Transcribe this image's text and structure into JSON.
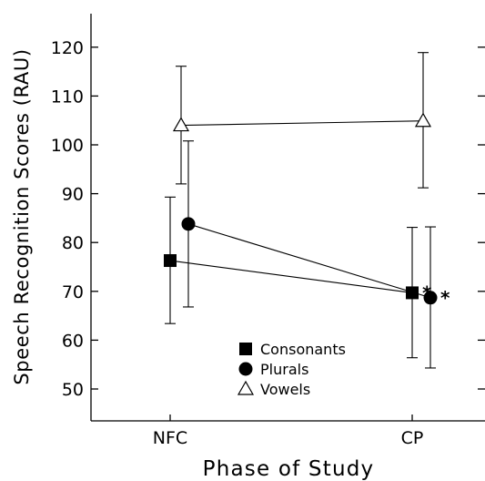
{
  "chart_data": {
    "type": "line",
    "categories": [
      "NFC",
      "CP"
    ],
    "xlabel": "Phase of Study",
    "ylabel": "Speech Recognition Scores (RAU)",
    "ylim": [
      44,
      127
    ],
    "yticks": [
      50,
      60,
      70,
      80,
      90,
      100,
      110,
      120
    ],
    "legend_position": "bottom-center",
    "grid": false,
    "series": [
      {
        "name": "Consonants",
        "marker": "filled-square",
        "values": [
          76.3,
          69.7
        ],
        "error_low": [
          63.4,
          56.4
        ],
        "error_high": [
          89.3,
          83.1
        ],
        "significance": [
          "",
          "*"
        ]
      },
      {
        "name": "Plurals",
        "marker": "filled-circle",
        "values": [
          83.8,
          68.7
        ],
        "error_low": [
          66.8,
          54.3
        ],
        "error_high": [
          100.8,
          83.2
        ],
        "significance": [
          "",
          "*"
        ]
      },
      {
        "name": "Vowels",
        "marker": "open-triangle",
        "values": [
          104.0,
          104.9
        ],
        "error_low": [
          92.0,
          91.2
        ],
        "error_high": [
          116.1,
          118.9
        ],
        "significance": [
          "",
          ""
        ]
      }
    ]
  }
}
